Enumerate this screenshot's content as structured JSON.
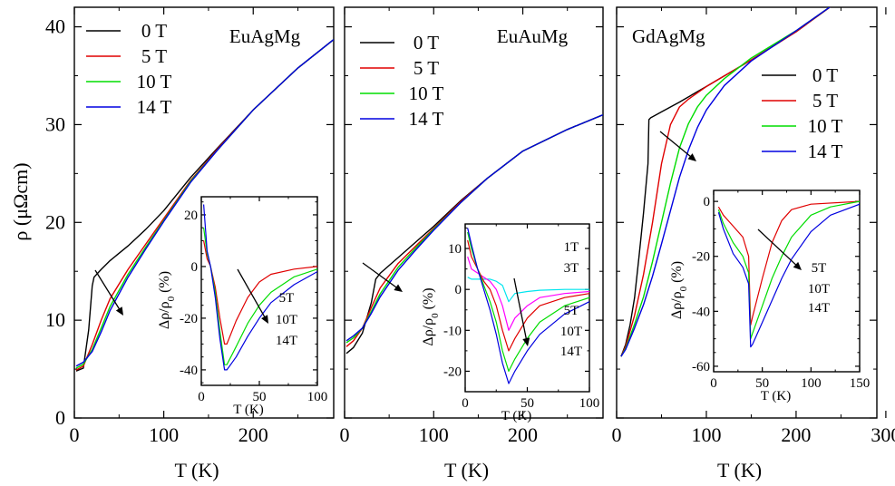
{
  "chart_data": [
    {
      "type": "line",
      "title": "EuAgMg",
      "xlabel": "T (K)",
      "ylabel": "ρ (μΩcm)",
      "xlim": [
        0,
        290
      ],
      "ylim": [
        0,
        42
      ],
      "xticks": [
        0,
        100,
        200
      ],
      "yticks": [
        0,
        10,
        20,
        30,
        40
      ],
      "legend_position": "top-left",
      "arrow_labels": [],
      "series": [
        {
          "name": "0 T",
          "color": "#000000",
          "x": [
            2,
            10,
            16,
            20,
            22,
            30,
            40,
            60,
            80,
            100,
            130,
            160,
            200,
            250,
            290
          ],
          "y": [
            4.8,
            5.1,
            9,
            13.5,
            14.4,
            15.2,
            16.1,
            17.6,
            19.3,
            21.2,
            24.6,
            27.6,
            31.5,
            35.8,
            38.7
          ]
        },
        {
          "name": "5 T",
          "color": "#e00000",
          "x": [
            2,
            10,
            20,
            30,
            40,
            60,
            80,
            100,
            130,
            160,
            200,
            250,
            290
          ],
          "y": [
            4.9,
            5.3,
            7.5,
            10,
            12.2,
            15.2,
            17.8,
            20.4,
            24.3,
            27.5,
            31.5,
            35.8,
            38.7
          ]
        },
        {
          "name": "10 T",
          "color": "#00dd00",
          "x": [
            2,
            10,
            20,
            30,
            40,
            60,
            80,
            100,
            130,
            160,
            200,
            250,
            290
          ],
          "y": [
            5.1,
            5.5,
            7.0,
            9.2,
            11.4,
            14.7,
            17.5,
            20.2,
            24.2,
            27.4,
            31.5,
            35.8,
            38.7
          ]
        },
        {
          "name": "14 T",
          "color": "#0000e0",
          "x": [
            2,
            10,
            20,
            30,
            40,
            60,
            80,
            100,
            130,
            160,
            200,
            250,
            290
          ],
          "y": [
            5.3,
            5.7,
            6.8,
            8.8,
            11.0,
            14.4,
            17.3,
            20.1,
            24.1,
            27.4,
            31.5,
            35.8,
            38.7
          ]
        }
      ],
      "inset": {
        "xlabel": "T (K)",
        "ylabel": "Δρ/ρ0 (%)",
        "ylabel_main": "Δρ/ρ",
        "ylabel_sub": "0",
        "ylabel_unit": " (%)",
        "xlim": [
          0,
          100
        ],
        "ylim": [
          -46,
          27
        ],
        "xticks": [
          0,
          50,
          100
        ],
        "yticks": [
          -40,
          -20,
          0,
          20
        ],
        "labels": [
          "5T",
          "10T",
          "14T"
        ],
        "series": [
          {
            "name": "5T",
            "color": "#e00000",
            "x": [
              2,
              5,
              8,
              12,
              16,
              20,
              22,
              30,
              40,
              50,
              60,
              80,
              100
            ],
            "y": [
              10,
              3,
              0,
              -8,
              -20,
              -30,
              -30,
              -21,
              -12,
              -6,
              -3,
              -1,
              0
            ]
          },
          {
            "name": "10T",
            "color": "#00dd00",
            "x": [
              2,
              5,
              8,
              12,
              16,
              20,
              22,
              30,
              40,
              50,
              60,
              80,
              100
            ],
            "y": [
              15,
              5,
              0,
              -10,
              -25,
              -38,
              -38,
              -31,
              -22,
              -15,
              -10,
              -4,
              -1
            ]
          },
          {
            "name": "14T",
            "color": "#0000e0",
            "x": [
              2,
              5,
              8,
              12,
              16,
              20,
              22,
              30,
              40,
              50,
              60,
              80,
              100
            ],
            "y": [
              24,
              6,
              0,
              -12,
              -28,
              -40,
              -40,
              -35,
              -27,
              -20,
              -14,
              -7,
              -2
            ]
          }
        ]
      }
    },
    {
      "type": "line",
      "title": "EuAuMg",
      "xlabel": "T (K)",
      "ylabel": "",
      "xlim": [
        0,
        290
      ],
      "ylim": [
        0,
        42
      ],
      "xticks": [
        0,
        100,
        200
      ],
      "yticks": [
        0,
        10,
        20,
        30,
        40
      ],
      "legend_position": "top-left",
      "series": [
        {
          "name": "0 T",
          "color": "#000000",
          "x": [
            2,
            10,
            20,
            30,
            35,
            40,
            60,
            80,
            100,
            130,
            160,
            200,
            250,
            290
          ],
          "y": [
            6.6,
            7.2,
            8.7,
            11.8,
            14.2,
            14.8,
            16.4,
            18.0,
            19.6,
            22.2,
            24.5,
            27.3,
            29.5,
            31.0
          ]
        },
        {
          "name": "5 T",
          "color": "#e00000",
          "x": [
            2,
            10,
            20,
            30,
            40,
            60,
            80,
            100,
            130,
            160,
            200,
            250,
            290
          ],
          "y": [
            7.3,
            7.9,
            9.2,
            11.3,
            13.3,
            15.8,
            17.6,
            19.4,
            22.1,
            24.5,
            27.3,
            29.5,
            31.0
          ]
        },
        {
          "name": "10 T",
          "color": "#00dd00",
          "x": [
            2,
            10,
            20,
            30,
            40,
            60,
            80,
            100,
            130,
            160,
            200,
            250,
            290
          ],
          "y": [
            7.7,
            8.2,
            9.2,
            10.9,
            12.7,
            15.4,
            17.4,
            19.3,
            22.0,
            24.5,
            27.3,
            29.5,
            31.0
          ]
        },
        {
          "name": "14 T",
          "color": "#0000e0",
          "x": [
            2,
            10,
            20,
            30,
            40,
            60,
            80,
            100,
            130,
            160,
            200,
            250,
            290
          ],
          "y": [
            7.9,
            8.4,
            9.2,
            10.7,
            12.4,
            15.1,
            17.2,
            19.2,
            22.0,
            24.5,
            27.3,
            29.5,
            31.0
          ]
        }
      ],
      "inset": {
        "xlabel": "T (K)",
        "ylabel": "Δρ/ρ0 (%)",
        "ylabel_main": "Δρ/ρ",
        "ylabel_sub": "0",
        "ylabel_unit": " (%)",
        "xlim": [
          0,
          100
        ],
        "ylim": [
          -25,
          16
        ],
        "xticks": [
          0,
          50,
          100
        ],
        "yticks": [
          -20,
          -10,
          0,
          10
        ],
        "labels": [
          "1T",
          "3T",
          "5T",
          "10T",
          "14T"
        ],
        "series": [
          {
            "name": "1T",
            "color": "#00e5ee",
            "x": [
              2,
              5,
              10,
              15,
              20,
              25,
              30,
              35,
              40,
              50,
              60,
              80,
              100
            ],
            "y": [
              3,
              2.5,
              2.5,
              2.5,
              2.5,
              2,
              1,
              -3,
              -1,
              -0.5,
              -0.2,
              0,
              0
            ]
          },
          {
            "name": "3T",
            "color": "#ff00ff",
            "x": [
              2,
              5,
              10,
              15,
              20,
              25,
              30,
              35,
              40,
              50,
              60,
              80,
              100
            ],
            "y": [
              8,
              5,
              4,
              3,
              2,
              0,
              -4,
              -10,
              -7,
              -4,
              -2,
              -1,
              -0.5
            ]
          },
          {
            "name": "5T",
            "color": "#e00000",
            "x": [
              2,
              5,
              10,
              15,
              20,
              25,
              30,
              35,
              40,
              50,
              60,
              80,
              100
            ],
            "y": [
              12,
              8,
              5,
              2,
              0,
              -4,
              -10,
              -15,
              -12,
              -7,
              -4,
              -2,
              -1
            ]
          },
          {
            "name": "10T",
            "color": "#00dd00",
            "x": [
              2,
              5,
              10,
              15,
              20,
              25,
              30,
              35,
              40,
              50,
              60,
              80,
              100
            ],
            "y": [
              14,
              10,
              5,
              1,
              -3,
              -8,
              -15,
              -20,
              -17,
              -12,
              -8,
              -4,
              -2
            ]
          },
          {
            "name": "14T",
            "color": "#0000e0",
            "x": [
              2,
              5,
              10,
              15,
              20,
              25,
              30,
              35,
              40,
              50,
              60,
              80,
              100
            ],
            "y": [
              15,
              11,
              5,
              0,
              -5,
              -11,
              -18,
              -23,
              -20,
              -15,
              -11,
              -6,
              -3
            ]
          }
        ]
      }
    },
    {
      "type": "line",
      "title": "GdAgMg",
      "xlabel": "T (K)",
      "ylabel": "",
      "xlim": [
        0,
        290
      ],
      "ylim": [
        0,
        42
      ],
      "xticks": [
        0,
        100,
        200,
        300
      ],
      "yticks": [
        0,
        10,
        20,
        30,
        40
      ],
      "legend_position": "right",
      "series": [
        {
          "name": "0 T",
          "color": "#000000",
          "x": [
            5,
            10,
            15,
            20,
            25,
            30,
            35,
            36,
            38,
            50,
            70,
            100,
            150,
            200,
            245
          ],
          "y": [
            6.3,
            7.5,
            9.5,
            12.3,
            16.5,
            21,
            26,
            30.5,
            30.7,
            31.3,
            32.3,
            33.9,
            36.6,
            39.5,
            42.5
          ]
        },
        {
          "name": "5 T",
          "color": "#e00000",
          "x": [
            5,
            10,
            20,
            30,
            40,
            50,
            60,
            70,
            80,
            100,
            150,
            200,
            245
          ],
          "y": [
            6.3,
            7.3,
            10.5,
            14.7,
            20,
            26,
            30,
            31.8,
            32.6,
            33.9,
            36.6,
            39.5,
            42.5
          ]
        },
        {
          "name": "10 T",
          "color": "#00dd00",
          "x": [
            5,
            10,
            20,
            30,
            40,
            50,
            60,
            70,
            80,
            90,
            100,
            120,
            150,
            200,
            245
          ],
          "y": [
            6.3,
            7.1,
            9.6,
            12.4,
            16,
            20,
            24,
            27.6,
            30.1,
            31.8,
            33,
            34.7,
            36.8,
            39.6,
            42.5
          ]
        },
        {
          "name": "14 T",
          "color": "#0000e0",
          "x": [
            5,
            10,
            20,
            30,
            40,
            50,
            60,
            70,
            80,
            90,
            100,
            120,
            150,
            200,
            245
          ],
          "y": [
            6.3,
            7.0,
            9.2,
            11.6,
            14.5,
            17.8,
            21.2,
            24.6,
            27.4,
            29.7,
            31.5,
            34.0,
            36.5,
            39.6,
            42.5
          ]
        }
      ],
      "inset": {
        "xlabel": "T (K)",
        "ylabel": "Δρ/ρ0 (%)",
        "ylabel_main": "Δρ/ρ",
        "ylabel_sub": "0",
        "ylabel_unit": " (%)",
        "xlim": [
          0,
          150
        ],
        "ylim": [
          -62,
          4
        ],
        "xticks": [
          0,
          50,
          100,
          150
        ],
        "yticks": [
          -60,
          -40,
          -20,
          0
        ],
        "labels": [
          "5T",
          "10T",
          "14T"
        ],
        "series": [
          {
            "name": "5T",
            "color": "#e00000",
            "x": [
              5,
              10,
              20,
              30,
              36,
              38,
              40,
              50,
              60,
              70,
              80,
              100,
              150
            ],
            "y": [
              -2,
              -5,
              -9,
              -13,
              -20,
              -45,
              -42,
              -28,
              -15,
              -7,
              -3,
              -1,
              0
            ]
          },
          {
            "name": "10T",
            "color": "#00dd00",
            "x": [
              5,
              10,
              20,
              30,
              36,
              38,
              40,
              50,
              60,
              70,
              80,
              100,
              120,
              150
            ],
            "y": [
              -3,
              -8,
              -15,
              -20,
              -26,
              -50,
              -48,
              -38,
              -28,
              -20,
              -13,
              -5,
              -2,
              0
            ]
          },
          {
            "name": "14T",
            "color": "#0000e0",
            "x": [
              5,
              10,
              20,
              30,
              36,
              38,
              40,
              50,
              60,
              70,
              80,
              100,
              120,
              150
            ],
            "y": [
              -4,
              -10,
              -19,
              -24,
              -30,
              -53,
              -52,
              -44,
              -36,
              -28,
              -21,
              -11,
              -5,
              -1
            ]
          }
        ]
      }
    }
  ]
}
